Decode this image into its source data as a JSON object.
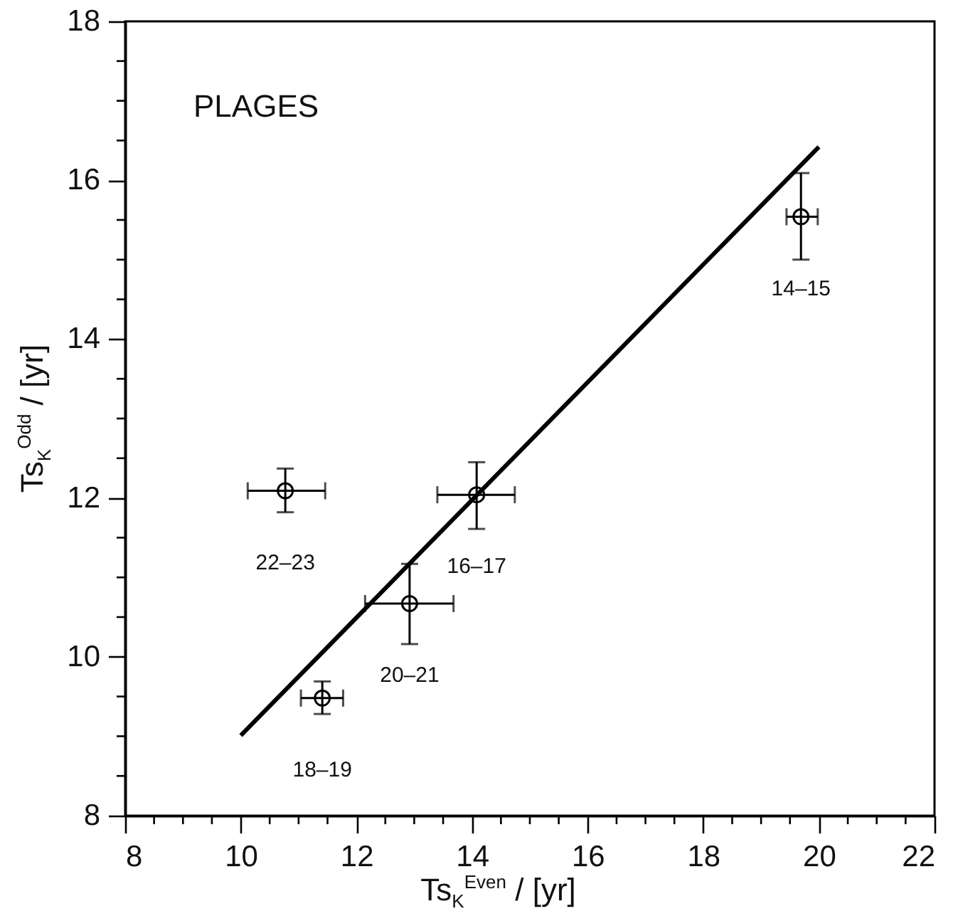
{
  "chart_data": {
    "type": "scatter",
    "xlabel": "Ts$_{K}$$^{Even}$ / [yr]",
    "ylabel": "Ts$_{K}$$^{Odd}$ / [yr]",
    "xlim": [
      8,
      22
    ],
    "ylim": [
      8,
      18
    ],
    "xticks": [
      8,
      {
        "value": 8.5,
        "label": null
      },
      {
        "value": 9,
        "label": null
      },
      {
        "value": 9.5,
        "label": null
      },
      10,
      {
        "value": 10.5,
        "label": null
      },
      {
        "value": 11,
        "label": null
      },
      {
        "value": 11.5,
        "label": null
      },
      12,
      {
        "value": 12.5,
        "label": null
      },
      {
        "value": 13,
        "label": null
      },
      {
        "value": 13.5,
        "label": null
      },
      14,
      {
        "value": 14.5,
        "label": null
      },
      {
        "value": 15,
        "label": null
      },
      {
        "value": 15.5,
        "label": null
      },
      16,
      {
        "value": 16.5,
        "label": null
      },
      {
        "value": 17,
        "label": null
      },
      {
        "value": 17.5,
        "label": null
      },
      18,
      {
        "value": 18.5,
        "label": null
      },
      {
        "value": 19,
        "label": null
      },
      {
        "value": 19.5,
        "label": null
      },
      20,
      {
        "value": 20.5,
        "label": null
      },
      {
        "value": 21,
        "label": null
      },
      {
        "value": 21.5,
        "label": null
      },
      22
    ],
    "yticks": [
      8,
      {
        "value": 8.5,
        "label": null
      },
      {
        "value": 9,
        "label": null
      },
      {
        "value": 9.5,
        "label": null
      },
      10,
      {
        "value": 10.5,
        "label": null
      },
      {
        "value": 11,
        "label": null
      },
      {
        "value": 11.5,
        "label": null
      },
      12,
      {
        "value": 12.5,
        "label": null
      },
      {
        "value": 13,
        "label": null
      },
      {
        "value": 13.5,
        "label": null
      },
      14,
      {
        "value": 14.5,
        "label": null
      },
      {
        "value": 15,
        "label": null
      },
      {
        "value": 15.5,
        "label": null
      },
      16,
      {
        "value": 16.5,
        "label": null
      },
      {
        "value": 17,
        "label": null
      },
      {
        "value": 17.5,
        "label": null
      },
      18
    ],
    "annotations": [
      "PLAGES",
      {
        "text": "14–15",
        "x": 19.69,
        "y": 15.54
      },
      {
        "text": "22–23",
        "x": 10.77,
        "y": 12.09
      },
      {
        "text": "16–17",
        "x": 14.08,
        "y": 12.04
      },
      {
        "text": "20–21",
        "x": 12.92,
        "y": 10.67
      },
      {
        "text": "18–19",
        "x": 11.41,
        "y": 9.48
      }
    ],
    "series": [
      {
        "marker": "circle",
        "color": "#000000",
        "x": [
          19.69,
          10.77,
          14.08,
          12.92,
          11.41
        ],
        "values": [
          15.54,
          12.09,
          12.04,
          10.67,
          9.48
        ],
        "errors": [
          [
            15.0,
            16.09
          ],
          [
            11.82,
            12.37
          ],
          [
            11.61,
            12.45
          ],
          [
            10.16,
            11.17
          ],
          [
            9.28,
            9.69
          ]
        ],
        "xerrors": [
          [
            19.44,
            19.98
          ],
          [
            10.12,
            11.46
          ],
          [
            13.4,
            14.74
          ],
          [
            12.15,
            13.68
          ],
          [
            11.04,
            11.77
          ]
        ]
      },
      {
        "type": "line",
        "color": "#000000",
        "x": [
          10,
          20
        ],
        "values": [
          9.01,
          16.42
        ]
      }
    ]
  }
}
